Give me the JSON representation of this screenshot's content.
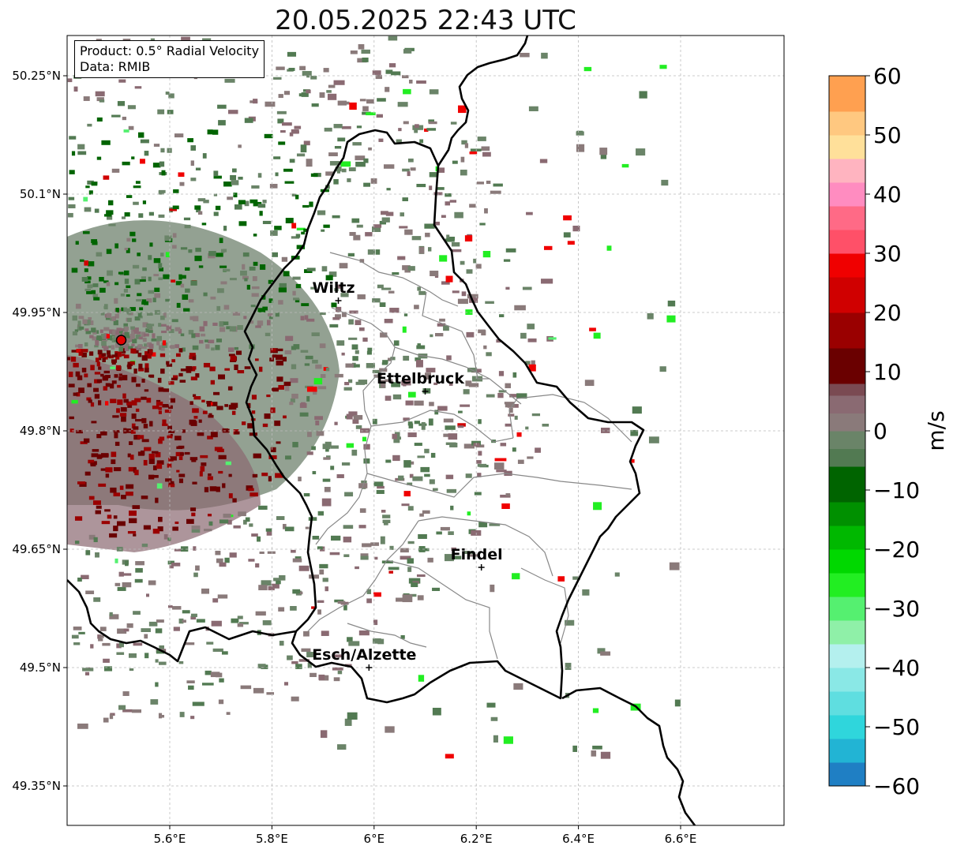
{
  "title": "20.05.2025 22:43 UTC",
  "info": {
    "product": "Product: 0.5° Radial Velocity",
    "data": "Data: RMIB"
  },
  "map": {
    "lon_range": [
      5.4,
      6.8
    ],
    "lat_range": [
      49.3,
      50.3
    ],
    "lon_ticks": [
      {
        "value": 5.6,
        "label": "5.6°E"
      },
      {
        "value": 5.8,
        "label": "5.8°E"
      },
      {
        "value": 6.0,
        "label": "6°E"
      },
      {
        "value": 6.2,
        "label": "6.2°E"
      },
      {
        "value": 6.4,
        "label": "6.4°E"
      },
      {
        "value": 6.6,
        "label": "6.6°E"
      }
    ],
    "lat_ticks": [
      {
        "value": 50.25,
        "label": "50.25°N"
      },
      {
        "value": 50.1,
        "label": "50.1°N"
      },
      {
        "value": 49.95,
        "label": "49.95°N"
      },
      {
        "value": 49.8,
        "label": "49.8°N"
      },
      {
        "value": 49.65,
        "label": "49.65°N"
      },
      {
        "value": 49.5,
        "label": "49.5°N"
      },
      {
        "value": 49.35,
        "label": "49.35°N"
      }
    ],
    "radar_site": {
      "lon": 5.505,
      "lat": 49.915
    },
    "cities": [
      {
        "name": "Wiltz",
        "lon": 5.93,
        "lat": 49.965
      },
      {
        "name": "Ettelbruck",
        "lon": 6.1,
        "lat": 49.85
      },
      {
        "name": "Findel",
        "lon": 6.21,
        "lat": 49.627
      },
      {
        "name": "Esch/Alzette",
        "lon": 5.99,
        "lat": 49.5
      }
    ],
    "colors": {
      "border": "#000000",
      "canton": "#888888",
      "grid": "#bbbbbb"
    }
  },
  "colorbar": {
    "label": "m/s",
    "min": -60,
    "max": 60,
    "ticks": [
      {
        "value": 60,
        "label": "60"
      },
      {
        "value": 50,
        "label": "50"
      },
      {
        "value": 40,
        "label": "40"
      },
      {
        "value": 30,
        "label": "30"
      },
      {
        "value": 20,
        "label": "20"
      },
      {
        "value": 10,
        "label": "10"
      },
      {
        "value": 0,
        "label": "0"
      },
      {
        "value": -10,
        "label": "−10"
      },
      {
        "value": -20,
        "label": "−20"
      },
      {
        "value": -30,
        "label": "−30"
      },
      {
        "value": -40,
        "label": "−40"
      },
      {
        "value": -50,
        "label": "−50"
      },
      {
        "value": -60,
        "label": "−60"
      }
    ],
    "segments": [
      {
        "from": -60,
        "to": -56,
        "color": "#1f7fc4"
      },
      {
        "from": -56,
        "to": -52,
        "color": "#22b4d4"
      },
      {
        "from": -52,
        "to": -48,
        "color": "#2fd6dc"
      },
      {
        "from": -48,
        "to": -44,
        "color": "#5fdee0"
      },
      {
        "from": -44,
        "to": -40,
        "color": "#8ae8e6"
      },
      {
        "from": -40,
        "to": -36,
        "color": "#b4f0ee"
      },
      {
        "from": -36,
        "to": -32,
        "color": "#8ff0a8"
      },
      {
        "from": -32,
        "to": -28,
        "color": "#55f070"
      },
      {
        "from": -28,
        "to": -24,
        "color": "#22ee22"
      },
      {
        "from": -24,
        "to": -20,
        "color": "#00d800"
      },
      {
        "from": -20,
        "to": -16,
        "color": "#00b800"
      },
      {
        "from": -16,
        "to": -12,
        "color": "#009000"
      },
      {
        "from": -12,
        "to": -6,
        "color": "#006400"
      },
      {
        "from": -6,
        "to": -3,
        "color": "#527a52"
      },
      {
        "from": -3,
        "to": 0,
        "color": "#6a8468"
      },
      {
        "from": 0,
        "to": 3,
        "color": "#8a7a7a"
      },
      {
        "from": 3,
        "to": 6,
        "color": "#8a6a72"
      },
      {
        "from": 6,
        "to": 8,
        "color": "#7a4a52"
      },
      {
        "from": 8,
        "to": 14,
        "color": "#6a0000"
      },
      {
        "from": 14,
        "to": 20,
        "color": "#9a0000"
      },
      {
        "from": 20,
        "to": 26,
        "color": "#d00000"
      },
      {
        "from": 26,
        "to": 30,
        "color": "#f00000"
      },
      {
        "from": 30,
        "to": 34,
        "color": "#ff5068"
      },
      {
        "from": 34,
        "to": 38,
        "color": "#ff6a86"
      },
      {
        "from": 38,
        "to": 42,
        "color": "#ff8cc0"
      },
      {
        "from": 42,
        "to": 46,
        "color": "#ffb4c0"
      },
      {
        "from": 46,
        "to": 50,
        "color": "#ffe09a"
      },
      {
        "from": 50,
        "to": 54,
        "color": "#ffc880"
      },
      {
        "from": 54,
        "to": 60,
        "color": "#ffa050"
      }
    ]
  }
}
